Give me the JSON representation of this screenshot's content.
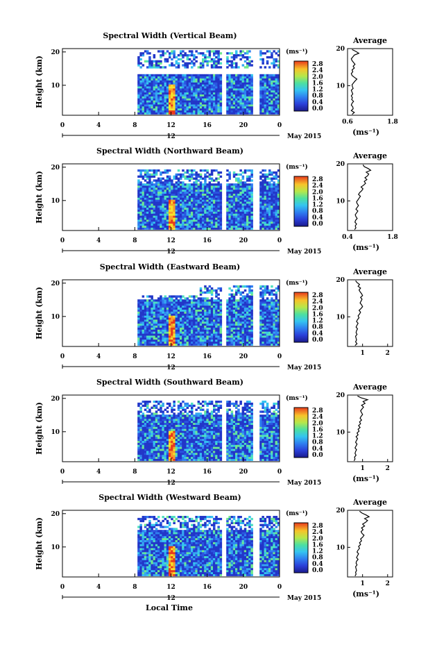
{
  "chart_data": [
    {
      "type": "heatmap",
      "title": "Spectral Width (Vertical Beam)",
      "ylabel": "Height (km)",
      "x_ticks": [
        "0",
        "4",
        "8",
        "12",
        "16",
        "20",
        "0"
      ],
      "y_ticks": [
        "20",
        "10"
      ],
      "date_marker": "12",
      "month_label": "May 2015",
      "colorbar": {
        "unit": "(ms⁻¹)",
        "ticks": [
          "2.8",
          "2.4",
          "2.0",
          "1.6",
          "1.2",
          "0.8",
          "0.4",
          "0.0"
        ]
      },
      "average": {
        "title": "Average",
        "xlabel": "(ms⁻¹)",
        "x_ticks": [
          "0.6",
          "1.8"
        ],
        "y_ticks": [
          "20",
          "10"
        ],
        "xlim": [
          0.6,
          1.8
        ],
        "ylim": [
          2,
          20
        ],
        "profile": [
          0.72,
          0.78,
          0.7,
          0.75,
          0.74,
          0.7,
          0.72,
          0.76,
          0.71,
          0.73,
          0.7,
          0.74,
          0.72,
          0.7,
          0.75,
          0.73,
          0.72,
          0.76,
          0.8,
          0.85,
          0.78,
          0.72,
          0.7,
          0.74,
          0.72,
          0.78,
          0.75,
          0.8,
          0.76,
          0.72,
          0.7,
          0.74,
          0.78,
          0.9,
          0.82,
          0.72
        ]
      }
    },
    {
      "type": "heatmap",
      "title": "Spectral Width (Northward Beam)",
      "ylabel": "Height (km)",
      "x_ticks": [
        "0",
        "4",
        "8",
        "12",
        "16",
        "20",
        "0"
      ],
      "y_ticks": [
        "20",
        "10"
      ],
      "date_marker": "12",
      "month_label": "May 2015",
      "colorbar": {
        "unit": "(ms⁻¹)",
        "ticks": [
          "2.8",
          "2.4",
          "2.0",
          "1.6",
          "1.2",
          "0.8",
          "0.4",
          "0.0"
        ]
      },
      "average": {
        "title": "Average",
        "xlabel": "(ms⁻¹)",
        "x_ticks": [
          "0.4",
          "1.8"
        ],
        "y_ticks": [
          "20",
          "10"
        ],
        "xlim": [
          0.4,
          1.8
        ],
        "ylim": [
          2,
          20
        ],
        "profile": [
          0.62,
          0.66,
          0.64,
          0.68,
          0.63,
          0.65,
          0.7,
          0.66,
          0.64,
          0.68,
          0.72,
          0.66,
          0.7,
          0.74,
          0.7,
          0.68,
          0.72,
          0.76,
          0.8,
          0.74,
          0.78,
          0.84,
          0.88,
          0.82,
          0.9,
          0.96,
          0.92,
          1.0,
          0.94,
          1.02,
          1.06,
          0.98,
          1.12,
          1.04,
          0.92,
          0.88
        ]
      }
    },
    {
      "type": "heatmap",
      "title": "Spectral Width (Eastward Beam)",
      "ylabel": "Height (km)",
      "x_ticks": [
        "0",
        "4",
        "8",
        "12",
        "16",
        "20",
        "0"
      ],
      "y_ticks": [
        "20",
        "10"
      ],
      "date_marker": "12",
      "month_label": "May 2015",
      "colorbar": {
        "unit": "(ms⁻¹)",
        "ticks": [
          "2.8",
          "2.4",
          "2.0",
          "1.6",
          "1.2",
          "0.8",
          "0.4",
          "0.0"
        ]
      },
      "average": {
        "title": "Average",
        "xlabel": "",
        "x_ticks": [
          "1",
          "2"
        ],
        "y_ticks": [
          "20",
          "10"
        ],
        "xlim": [
          0.4,
          2.2
        ],
        "ylim": [
          2,
          20
        ],
        "profile": [
          0.7,
          0.78,
          0.72,
          0.76,
          0.74,
          0.72,
          0.78,
          0.74,
          0.76,
          0.8,
          0.74,
          0.78,
          0.82,
          0.76,
          0.8,
          0.86,
          0.82,
          0.88,
          0.92,
          0.86,
          0.94,
          1.0,
          0.96,
          0.9,
          0.94,
          0.98,
          0.92,
          1.0,
          0.96,
          0.9,
          0.86,
          0.92,
          0.82,
          0.88,
          0.78,
          0.72
        ]
      }
    },
    {
      "type": "heatmap",
      "title": "Spectral Width (Southward Beam)",
      "ylabel": "Height (km)",
      "x_ticks": [
        "0",
        "4",
        "8",
        "12",
        "16",
        "20",
        "0"
      ],
      "y_ticks": [
        "20",
        "10"
      ],
      "date_marker": "12",
      "month_label": "May 2015",
      "colorbar": {
        "unit": "(ms⁻¹)",
        "ticks": [
          "2.8",
          "2.4",
          "2.0",
          "1.6",
          "1.2",
          "0.8",
          "0.4",
          "0.0"
        ]
      },
      "average": {
        "title": "Average",
        "xlabel": "(ms⁻¹)",
        "x_ticks": [
          "1",
          "2"
        ],
        "y_ticks": [
          "20",
          "10"
        ],
        "xlim": [
          0.4,
          2.2
        ],
        "ylim": [
          2,
          20
        ],
        "profile": [
          0.66,
          0.7,
          0.68,
          0.74,
          0.7,
          0.72,
          0.76,
          0.7,
          0.74,
          0.78,
          0.72,
          0.76,
          0.8,
          0.74,
          0.82,
          0.78,
          0.86,
          0.82,
          0.9,
          0.84,
          0.92,
          0.88,
          0.96,
          0.9,
          0.94,
          1.0,
          0.96,
          0.92,
          0.98,
          1.04,
          0.96,
          1.1,
          1.02,
          1.2,
          0.94,
          0.8
        ]
      }
    },
    {
      "type": "heatmap",
      "title": "Spectral Width (Westward Beam)",
      "ylabel": "Height (km)",
      "x_ticks": [
        "0",
        "4",
        "8",
        "12",
        "16",
        "20",
        "0"
      ],
      "y_ticks": [
        "20",
        "10"
      ],
      "date_marker": "12",
      "month_label": "May 2015",
      "colorbar": {
        "unit": "(ms⁻¹)",
        "ticks": [
          "2.8",
          "2.4",
          "2.0",
          "1.6",
          "1.2",
          "0.8",
          "0.4",
          "0.0"
        ]
      },
      "average": {
        "title": "Average",
        "xlabel": "(ms⁻¹)",
        "x_ticks": [
          "1",
          "2"
        ],
        "y_ticks": [
          "20",
          "10"
        ],
        "xlim": [
          0.4,
          2.2
        ],
        "ylim": [
          2,
          20
        ],
        "profile": [
          0.7,
          0.74,
          0.72,
          0.76,
          0.74,
          0.72,
          0.78,
          0.74,
          0.76,
          0.82,
          0.76,
          0.8,
          0.84,
          0.78,
          0.82,
          0.88,
          0.84,
          0.92,
          0.88,
          0.96,
          0.92,
          1.0,
          1.06,
          0.98,
          0.94,
          1.02,
          0.96,
          1.08,
          1.0,
          1.12,
          1.2,
          1.08,
          1.26,
          1.14,
          0.98,
          0.88
        ]
      }
    }
  ],
  "x_axis_label": "Local Time"
}
